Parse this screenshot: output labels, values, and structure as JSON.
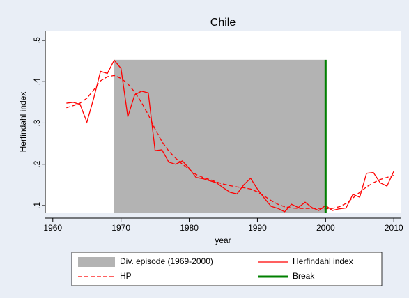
{
  "chart_data": {
    "type": "line",
    "title": "Chile",
    "x_label": "year",
    "y_label": "Herfindahl index",
    "x": [
      1962,
      1963,
      1964,
      1965,
      1966,
      1967,
      1968,
      1969,
      1970,
      1971,
      1972,
      1973,
      1974,
      1975,
      1976,
      1977,
      1978,
      1979,
      1980,
      1981,
      1982,
      1983,
      1984,
      1985,
      1986,
      1987,
      1988,
      1989,
      1990,
      1991,
      1992,
      1993,
      1994,
      1995,
      1996,
      1997,
      1998,
      1999,
      2000,
      2001,
      2002,
      2003,
      2004,
      2005,
      2006,
      2007,
      2008,
      2009,
      2010
    ],
    "series": [
      {
        "name": "Herfindahl index",
        "color": "#ff0000",
        "dash": false,
        "values": [
          0.348,
          0.35,
          0.345,
          0.302,
          0.36,
          0.425,
          0.42,
          0.452,
          0.432,
          0.315,
          0.368,
          0.377,
          0.373,
          0.233,
          0.235,
          0.205,
          0.2,
          0.208,
          0.19,
          0.168,
          0.165,
          0.16,
          0.155,
          0.143,
          0.132,
          0.128,
          0.15,
          0.166,
          0.14,
          0.118,
          0.098,
          0.093,
          0.085,
          0.103,
          0.095,
          0.108,
          0.095,
          0.088,
          0.1,
          0.088,
          0.092,
          0.094,
          0.127,
          0.12,
          0.178,
          0.18,
          0.155,
          0.147,
          0.183
        ]
      },
      {
        "name": "HP",
        "color": "#ff0000",
        "dash": true,
        "values": [
          0.337,
          0.342,
          0.348,
          0.36,
          0.38,
          0.402,
          0.412,
          0.415,
          0.408,
          0.395,
          0.375,
          0.35,
          0.32,
          0.285,
          0.255,
          0.232,
          0.215,
          0.2,
          0.188,
          0.175,
          0.168,
          0.163,
          0.157,
          0.152,
          0.148,
          0.145,
          0.143,
          0.14,
          0.133,
          0.123,
          0.112,
          0.103,
          0.097,
          0.094,
          0.093,
          0.093,
          0.093,
          0.093,
          0.092,
          0.093,
          0.097,
          0.105,
          0.118,
          0.132,
          0.145,
          0.155,
          0.163,
          0.168,
          0.173
        ]
      }
    ],
    "shade": {
      "name": "Div. episode (1969-2000)",
      "color": "#b3b3b3",
      "x": [
        1969,
        2000
      ],
      "y": [
        0.083,
        0.453
      ]
    },
    "break": {
      "name": "Break",
      "color": "#008000",
      "x": 2000,
      "y": [
        0.083,
        0.453
      ]
    },
    "xlim": [
      1958.9,
      2011.0
    ],
    "xticks": [
      1960,
      1970,
      1980,
      1990,
      2000,
      2010
    ],
    "ylim": [
      0.083,
      0.522
    ],
    "yticks": [
      {
        "value": 0.1,
        "label": ".1"
      },
      {
        "value": 0.2,
        "label": ".2"
      },
      {
        "value": 0.3,
        "label": ".3"
      },
      {
        "value": 0.4,
        "label": ".4"
      },
      {
        "value": 0.5,
        "label": ".5"
      }
    ]
  }
}
